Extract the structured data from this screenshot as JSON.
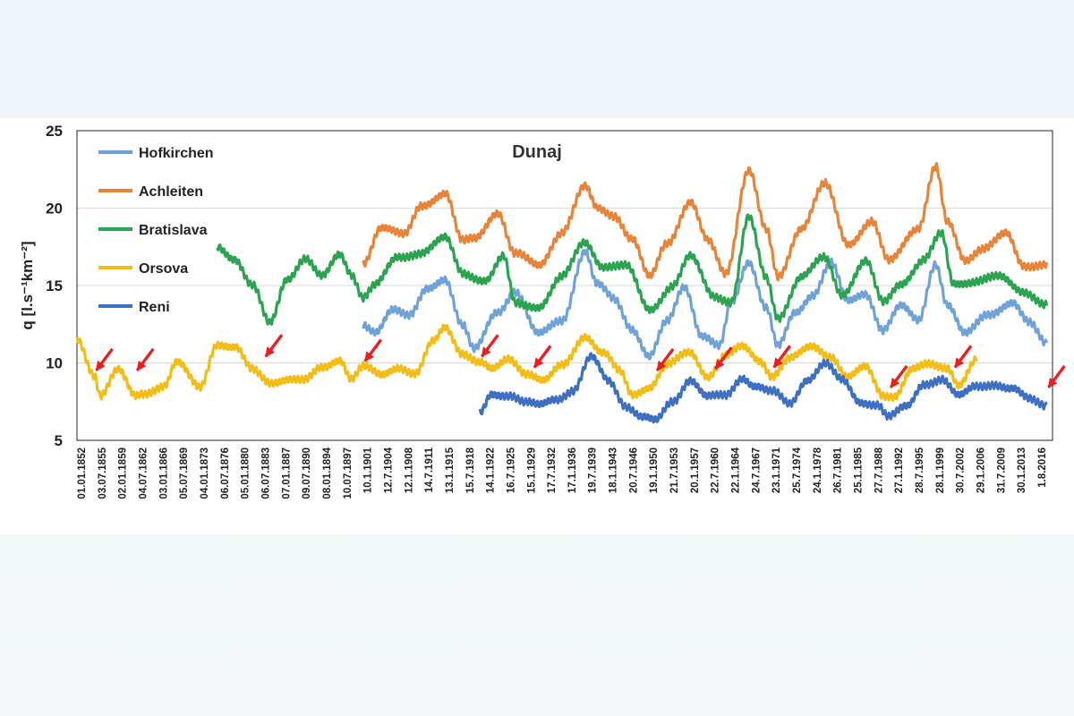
{
  "chart_data": {
    "type": "line",
    "title": "Dunaj",
    "ylabel": "q [l.s⁻¹km⁻²]",
    "xlabel": "",
    "ylim": [
      5,
      25
    ],
    "y_ticks": [
      5,
      10,
      15,
      20,
      25
    ],
    "grid": true,
    "legend_position": "top-left",
    "x_ticks": [
      "01.01.1852",
      "03.07.1855",
      "02.01.1859",
      "04.07.1862",
      "03.01.1866",
      "05.07.1869",
      "04.01.1873",
      "06.07.1876",
      "05.01.1880",
      "06.07.1883",
      "07.01.1887",
      "09.07.1890",
      "08.01.1894",
      "10.07.1897",
      "10.1.1901",
      "12.7.1904",
      "12.1.1908",
      "14.7.1911",
      "13.1.1915",
      "15.7.1918",
      "14.1.1922",
      "16.7.1925",
      "15.1.1929",
      "17.7.1932",
      "17.1.1936",
      "19.7.1939",
      "18.1.1943",
      "20.7.1946",
      "19.1.1950",
      "21.7.1953",
      "20.1.1957",
      "22.7.1960",
      "22.1.1964",
      "24.7.1967",
      "23.1.1971",
      "25.7.1974",
      "24.1.1978",
      "26.7.1981",
      "25.1.1985",
      "27.7.1988",
      "27.1.1992",
      "28.7.1995",
      "28.1.1999",
      "30.7.2002",
      "29.1.2006",
      "31.7.2009",
      "30.1.2013",
      "1.8.2016"
    ],
    "series": [
      {
        "name": "Hofkirchen",
        "color": "#6fa3d8",
        "x": [
          1901,
          1903,
          1906,
          1909,
          1912,
          1915,
          1918,
          1920,
          1924,
          1927,
          1931,
          1935,
          1939,
          1941,
          1944,
          1947,
          1950,
          1953,
          1956,
          1959,
          1962,
          1964,
          1967,
          1970,
          1972,
          1975,
          1978,
          1981,
          1984,
          1987,
          1990,
          1993,
          1996,
          1999,
          2001,
          2004,
          2008,
          2012,
          2015,
          2018
        ],
        "values": [
          12.3,
          12.0,
          13.6,
          13.0,
          14.7,
          15.5,
          12.5,
          10.8,
          13.3,
          14.7,
          11.8,
          12.8,
          17.2,
          15.0,
          14.1,
          12.3,
          10.4,
          12.6,
          15.0,
          11.8,
          11.0,
          13.8,
          16.6,
          13.6,
          11.0,
          13.2,
          14.5,
          16.5,
          13.9,
          14.5,
          12.2,
          13.6,
          12.7,
          16.5,
          13.8,
          11.8,
          13.2,
          13.9,
          12.5,
          11.3
        ]
      },
      {
        "name": "Achleiten",
        "color": "#e8843a",
        "x": [
          1901,
          1904,
          1908,
          1911,
          1915,
          1918,
          1920,
          1924,
          1927,
          1931,
          1935,
          1939,
          1941,
          1944,
          1947,
          1950,
          1953,
          1957,
          1960,
          1963,
          1967,
          1970,
          1972,
          1976,
          1980,
          1984,
          1988,
          1991,
          1996,
          1999,
          2001,
          2004,
          2007,
          2011,
          2014,
          2018
        ],
        "values": [
          16.5,
          18.8,
          18.2,
          20.2,
          21.0,
          17.8,
          18.0,
          19.8,
          17.0,
          16.3,
          18.5,
          21.3,
          20.0,
          19.6,
          18.0,
          15.5,
          17.8,
          20.4,
          17.8,
          15.8,
          22.5,
          18.5,
          15.5,
          18.8,
          21.5,
          17.7,
          19.2,
          16.5,
          18.8,
          22.7,
          19.0,
          16.6,
          17.5,
          18.3,
          16.2,
          16.5
        ]
      },
      {
        "name": "Bratislava",
        "color": "#2aa44e",
        "x": [
          1876,
          1879,
          1882,
          1885,
          1888,
          1891,
          1894,
          1897,
          1899,
          1901,
          1903,
          1907,
          1911,
          1915,
          1918,
          1922,
          1925,
          1927,
          1931,
          1935,
          1939,
          1942,
          1946,
          1950,
          1954,
          1957,
          1961,
          1964,
          1967,
          1970,
          1972,
          1976,
          1980,
          1983,
          1987,
          1990,
          1993,
          1997,
          2000,
          2002,
          2006,
          2010,
          2014,
          2018
        ],
        "values": [
          17.5,
          16.8,
          15.0,
          12.5,
          15.5,
          16.8,
          15.5,
          17.0,
          15.8,
          14.3,
          15.0,
          16.8,
          17.2,
          18.0,
          15.8,
          15.4,
          16.8,
          13.8,
          13.7,
          15.5,
          17.8,
          16.3,
          16.2,
          13.5,
          15.0,
          16.8,
          14.4,
          14.0,
          19.3,
          15.5,
          13.0,
          15.5,
          16.8,
          14.5,
          16.5,
          13.9,
          15.2,
          16.6,
          18.3,
          15.2,
          15.3,
          15.5,
          14.7,
          13.7
        ]
      },
      {
        "name": "Orsova",
        "color": "#f2bd16",
        "x": [
          1852,
          1855,
          1856,
          1859,
          1862,
          1863,
          1867,
          1869,
          1873,
          1876,
          1879,
          1882,
          1885,
          1888,
          1891,
          1894,
          1897,
          1899,
          1901,
          1904,
          1907,
          1910,
          1913,
          1915,
          1918,
          1921,
          1923,
          1926,
          1929,
          1932,
          1935,
          1939,
          1942,
          1945,
          1947,
          1950,
          1953,
          1957,
          1960,
          1963,
          1966,
          1969,
          1971,
          1974,
          1978,
          1981,
          1984,
          1987,
          1990,
          1992,
          1995,
          1998,
          2001,
          2003,
          2006
        ],
        "values": [
          11.5,
          9.3,
          8.0,
          9.5,
          7.8,
          8.0,
          8.6,
          10.0,
          8.4,
          11.3,
          11.0,
          9.5,
          8.8,
          9.0,
          8.8,
          9.7,
          10.3,
          9.0,
          9.7,
          9.2,
          9.8,
          9.3,
          11.3,
          12.3,
          10.7,
          10.0,
          9.5,
          10.3,
          9.4,
          8.8,
          9.8,
          11.8,
          10.6,
          9.4,
          8.0,
          8.5,
          9.8,
          10.7,
          9.2,
          10.4,
          11.0,
          10.2,
          9.2,
          10.2,
          11.1,
          10.5,
          9.0,
          9.7,
          8.0,
          7.9,
          9.5,
          9.9,
          9.8,
          8.6,
          10.1
        ]
      },
      {
        "name": "Reni",
        "color": "#3d6fc3",
        "x": [
          1921,
          1923,
          1926,
          1929,
          1931,
          1934,
          1937,
          1940,
          1943,
          1946,
          1949,
          1951,
          1954,
          1957,
          1960,
          1963,
          1966,
          1968,
          1971,
          1974,
          1977,
          1980,
          1983,
          1986,
          1989,
          1991,
          1994,
          1997,
          2000,
          2003,
          2006,
          2009,
          2012,
          2015,
          2018
        ],
        "values": [
          6.7,
          8.0,
          8.0,
          7.4,
          7.2,
          7.7,
          8.3,
          10.3,
          8.8,
          7.3,
          6.5,
          6.2,
          7.5,
          9.0,
          7.8,
          7.8,
          9.1,
          8.6,
          8.1,
          7.3,
          9.0,
          10.0,
          8.8,
          7.5,
          7.4,
          6.5,
          7.1,
          8.7,
          9.0,
          7.8,
          8.5,
          8.7,
          8.3,
          7.6,
          7.3
        ]
      }
    ],
    "annotations": [
      {
        "type": "arrow",
        "color": "#e82020",
        "target_year": 1855,
        "target_value": 9.4
      },
      {
        "type": "arrow",
        "color": "#e82020",
        "target_year": 1862,
        "target_value": 9.4
      },
      {
        "type": "arrow",
        "color": "#e82020",
        "target_year": 1884,
        "target_value": 10.3
      },
      {
        "type": "arrow",
        "color": "#e82020",
        "target_year": 1901,
        "target_value": 10.0
      },
      {
        "type": "arrow",
        "color": "#e82020",
        "target_year": 1921,
        "target_value": 10.3
      },
      {
        "type": "arrow",
        "color": "#e82020",
        "target_year": 1930,
        "target_value": 9.6
      },
      {
        "type": "arrow",
        "color": "#e82020",
        "target_year": 1951,
        "target_value": 9.4
      },
      {
        "type": "arrow",
        "color": "#e82020",
        "target_year": 1961,
        "target_value": 9.5
      },
      {
        "type": "arrow",
        "color": "#e82020",
        "target_year": 1971,
        "target_value": 9.6
      },
      {
        "type": "arrow",
        "color": "#e82020",
        "target_year": 1991,
        "target_value": 8.3
      },
      {
        "type": "arrow",
        "color": "#e82020",
        "target_year": 2002,
        "target_value": 9.6
      },
      {
        "type": "arrow",
        "color": "#e82020",
        "target_year": 2018,
        "target_value": 8.3
      }
    ]
  }
}
